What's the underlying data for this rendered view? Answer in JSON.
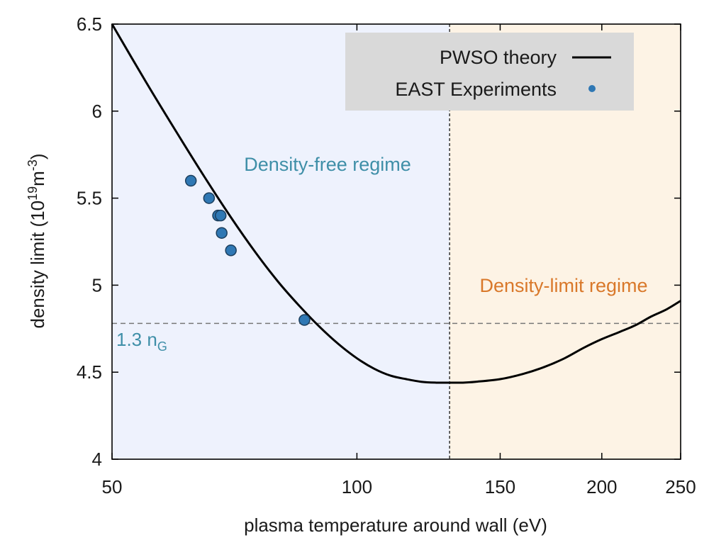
{
  "chart_data": {
    "type": "scatter",
    "x_scale": "log",
    "xlabel": "plasma temperature around wall (eV)",
    "ylabel_main": "density limit (10",
    "ylabel_exp1": "19",
    "ylabel_mid": "m",
    "ylabel_exp2": "-3",
    "ylabel_end": ")",
    "xlim": [
      50,
      250
    ],
    "ylim": [
      4,
      6.5
    ],
    "x_ticks": [
      50,
      100,
      150,
      200,
      250
    ],
    "x_tick_labels": [
      "50",
      "100",
      "150",
      "200",
      "250"
    ],
    "y_ticks": [
      4,
      4.5,
      5,
      5.5,
      6,
      6.5
    ],
    "y_tick_labels": [
      "4",
      "4.5",
      "5",
      "5.5",
      "6",
      "6.5"
    ],
    "regime_boundary_x": 130,
    "reference_line": {
      "y": 4.78,
      "label_main": "1.3 n",
      "label_sub": "G"
    },
    "regions": [
      {
        "label": "Density-free regime",
        "x_from": 50,
        "x_to": 130,
        "color": "#eef2fd",
        "text_color": "#3f8fa8"
      },
      {
        "label": "Density-limit regime",
        "x_from": 130,
        "x_to": 250,
        "color": "#fdf3e5",
        "text_color": "#d9782a"
      }
    ],
    "grid": false,
    "legend_placement": "top-right",
    "series": [
      {
        "name": "PWSO theory",
        "kind": "line",
        "color": "#000000",
        "x": [
          50,
          55,
          60,
          65,
          70,
          75,
          80,
          85,
          90,
          95,
          100,
          105,
          110,
          115,
          120,
          125,
          130,
          135,
          140,
          150,
          160,
          170,
          180,
          190,
          200,
          210,
          220,
          230,
          240,
          250
        ],
        "y": [
          6.5,
          6.17,
          5.88,
          5.62,
          5.39,
          5.19,
          5.02,
          4.88,
          4.76,
          4.66,
          4.58,
          4.52,
          4.48,
          4.46,
          4.445,
          4.44,
          4.44,
          4.44,
          4.445,
          4.46,
          4.49,
          4.53,
          4.58,
          4.64,
          4.69,
          4.73,
          4.77,
          4.82,
          4.86,
          4.91
        ]
      },
      {
        "name": "EAST Experiments",
        "kind": "scatter",
        "color": "#2f78b4",
        "x": [
          62.5,
          65.8,
          67.5,
          68.0,
          68.2,
          70.0,
          86.2
        ],
        "y": [
          5.6,
          5.5,
          5.4,
          5.4,
          5.3,
          5.2,
          4.8
        ]
      }
    ]
  }
}
